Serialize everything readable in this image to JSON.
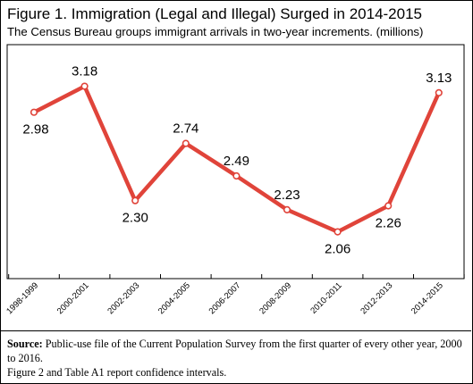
{
  "header": {
    "title": "Figure 1. Immigration (Legal and Illegal) Surged in 2014-2015",
    "subtitle": "The Census Bureau groups immigrant arrivals in two-year increments. (millions)"
  },
  "footer": {
    "source_label": "Source:",
    "source_text": " Public-use file of the Current Population Survey from the first quarter of every other year, 2000 to 2016.",
    "note": "Figure 2 and Table A1 report confidence intervals."
  },
  "colors": {
    "line": "#e0443a",
    "marker_fill": "#ffffff"
  },
  "chart_data": {
    "type": "line",
    "categories": [
      "1998-1999",
      "2000-2001",
      "2002-2003",
      "2004-2005",
      "2006-2007",
      "2008-2009",
      "2010-2011",
      "2012-2013",
      "2014-2015"
    ],
    "values": [
      2.98,
      3.18,
      2.3,
      2.74,
      2.49,
      2.23,
      2.06,
      2.26,
      3.13
    ],
    "data_labels": [
      "2.98",
      "3.18",
      "2.30",
      "2.74",
      "2.49",
      "2.23",
      "2.06",
      "2.26",
      "3.13"
    ],
    "label_positions": [
      "below",
      "above",
      "below",
      "above",
      "above",
      "above",
      "below",
      "below",
      "above"
    ],
    "ylim": [
      1.7,
      3.5
    ],
    "grid": false,
    "legend": "none"
  }
}
